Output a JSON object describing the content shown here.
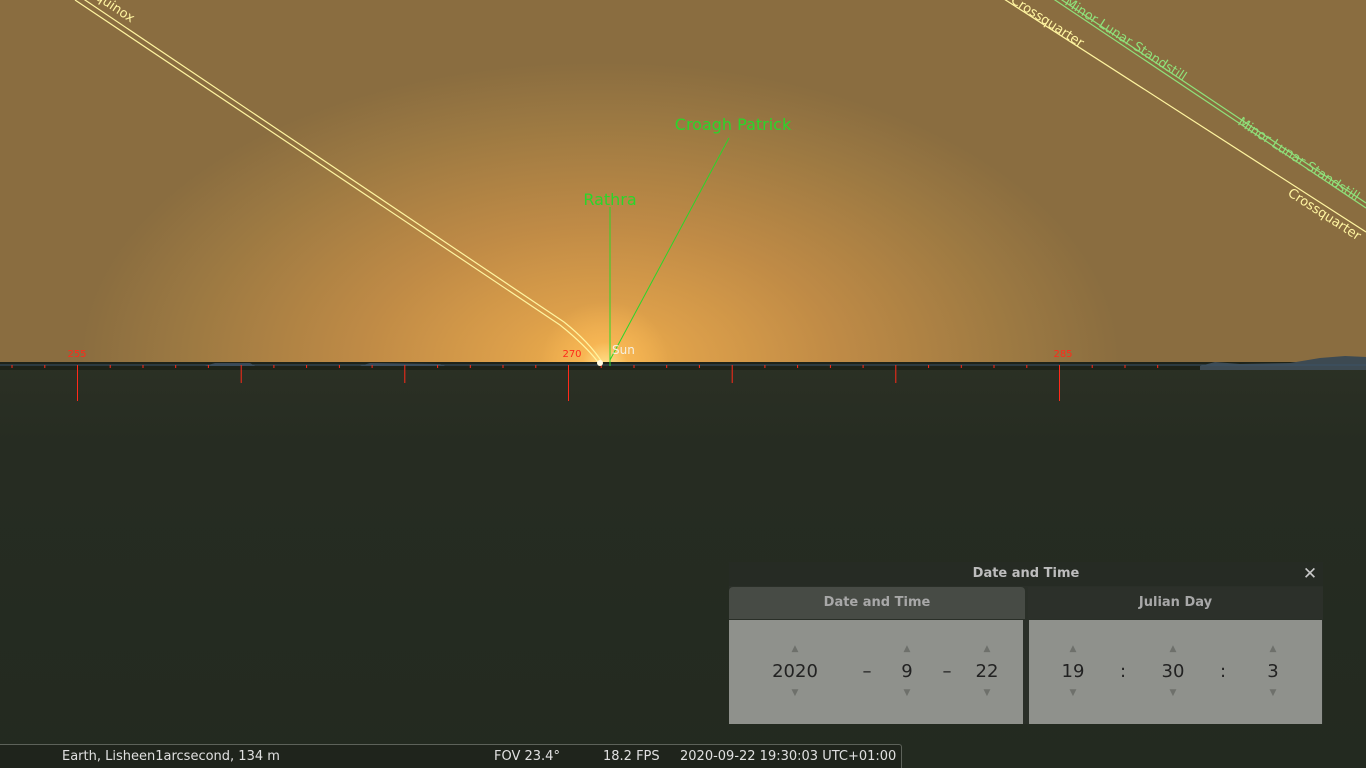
{
  "sky_labels": {
    "equinox": "Equinox",
    "crossquarter_top": "Crossquarter",
    "crossquarter_right": "Crossquarter",
    "minor_lunar_top": "Minor Lunar Standstill",
    "minor_lunar_right": "Minor Lunar Standstill",
    "croagh_patrick": "Croagh Patrick",
    "rathra": "Rathra",
    "sun": "Sun"
  },
  "azimuth_labels": [
    "255",
    "270",
    "285"
  ],
  "colors": {
    "landmark_green": "#2ad62a",
    "alignment_line_yellow": "#fff4a0",
    "lunar_line_green": "#8fe07a",
    "azimuth_red": "#ff2a1a"
  },
  "date_time_dialog": {
    "title": "Date and Time",
    "close_icon": "close-icon",
    "tabs": [
      {
        "label": "Date and Time",
        "active": true
      },
      {
        "label": "Julian Day",
        "active": false
      }
    ],
    "date": {
      "year": "2020",
      "month": "9",
      "day": "22",
      "separator": "–"
    },
    "time": {
      "hour": "19",
      "minute": "30",
      "second": "3",
      "separator": ":"
    },
    "arrow_up": "▲",
    "arrow_down": "▼"
  },
  "status_bar": {
    "location": "Earth, Lisheen1arcsecond, 134 m",
    "fov": "FOV 23.4°",
    "fps": "18.2 FPS",
    "datetime": "2020-09-22 19:30:03 UTC+01:00"
  }
}
